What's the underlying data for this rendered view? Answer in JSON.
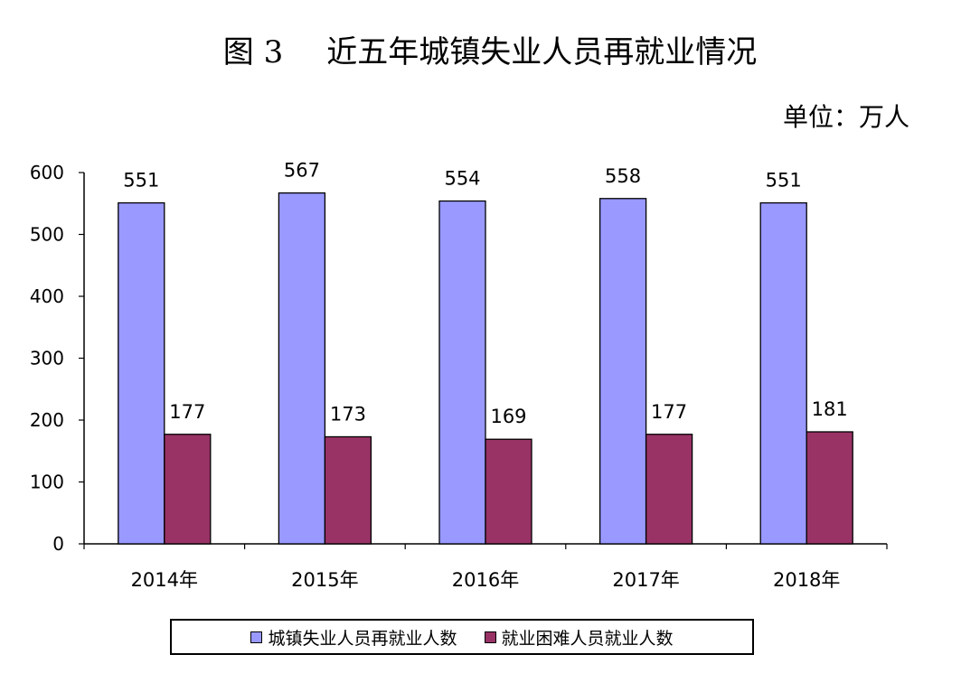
{
  "title": {
    "figure_number": "图 3",
    "text": "近五年城镇失业人员再就业情况"
  },
  "unit_label": "单位：万人",
  "chart_data": {
    "type": "bar",
    "categories": [
      "2014年",
      "2015年",
      "2016年",
      "2017年",
      "2018年"
    ],
    "series": [
      {
        "name": "城镇失业人员再就业人数",
        "values": [
          551,
          567,
          554,
          558,
          551
        ],
        "color": "#9999FF"
      },
      {
        "name": "就业困难人员就业人数",
        "values": [
          177,
          173,
          169,
          177,
          181
        ],
        "color": "#993366"
      }
    ],
    "ylim": [
      0,
      600
    ],
    "yticks": [
      0,
      100,
      200,
      300,
      400,
      500,
      600
    ],
    "grid": false,
    "legend_position": "bottom",
    "data_labels": true
  }
}
